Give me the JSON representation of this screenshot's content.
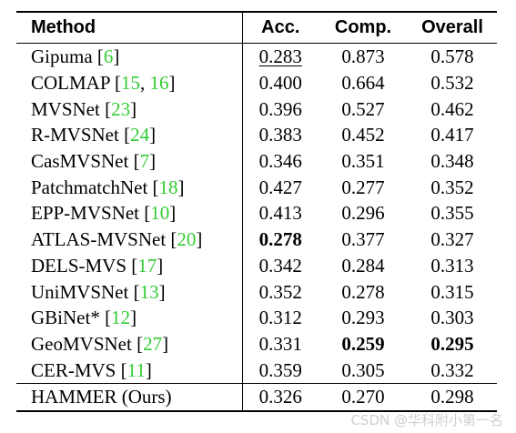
{
  "table": {
    "headers": {
      "method": "Method",
      "acc": "Acc.",
      "comp": "Comp.",
      "overall": "Overall"
    },
    "rows": [
      {
        "name": "Gipuma",
        "refs": [
          [
            "6"
          ]
        ],
        "acc": "0.283",
        "comp": "0.873",
        "overall": "0.578",
        "acc_style": "underline"
      },
      {
        "name": "COLMAP",
        "refs": [
          [
            "15",
            "16"
          ]
        ],
        "acc": "0.400",
        "comp": "0.664",
        "overall": "0.532"
      },
      {
        "name": "MVSNet",
        "refs": [
          [
            "23"
          ]
        ],
        "acc": "0.396",
        "comp": "0.527",
        "overall": "0.462"
      },
      {
        "name": "R-MVSNet",
        "refs": [
          [
            "24"
          ]
        ],
        "acc": "0.383",
        "comp": "0.452",
        "overall": "0.417"
      },
      {
        "name": "CasMVSNet",
        "refs": [
          [
            "7"
          ]
        ],
        "acc": "0.346",
        "comp": "0.351",
        "overall": "0.348"
      },
      {
        "name": "PatchmatchNet",
        "refs": [
          [
            "18"
          ]
        ],
        "acc": "0.427",
        "comp": "0.277",
        "overall": "0.352"
      },
      {
        "name": "EPP-MVSNet",
        "refs": [
          [
            "10"
          ]
        ],
        "acc": "0.413",
        "comp": "0.296",
        "overall": "0.355"
      },
      {
        "name": "ATLAS-MVSNet",
        "refs": [
          [
            "20"
          ]
        ],
        "acc": "0.278",
        "comp": "0.377",
        "overall": "0.327",
        "acc_style": "bold"
      },
      {
        "name": "DELS-MVS",
        "refs": [
          [
            "17"
          ]
        ],
        "acc": "0.342",
        "comp": "0.284",
        "overall": "0.313"
      },
      {
        "name": "UniMVSNet",
        "refs": [
          [
            "13"
          ]
        ],
        "acc": "0.352",
        "comp": "0.278",
        "overall": "0.315"
      },
      {
        "name": "GBiNet*",
        "refs": [
          [
            "12"
          ]
        ],
        "acc": "0.312",
        "comp": "0.293",
        "overall": "0.303"
      },
      {
        "name": "GeoMVSNet",
        "refs": [
          [
            "27"
          ]
        ],
        "acc": "0.331",
        "comp": "0.259",
        "overall": "0.295",
        "comp_style": "bold",
        "overall_style": "bold"
      },
      {
        "name": "CER-MVS",
        "refs": [
          [
            "11"
          ]
        ],
        "acc": "0.359",
        "comp": "0.305",
        "overall": "0.332"
      },
      {
        "name": "HAMMER (Ours)",
        "refs": [],
        "acc": "0.326",
        "comp": "0.270",
        "overall": "0.298",
        "ours": true
      }
    ]
  },
  "watermark": "CSDN @华科附小第一名"
}
